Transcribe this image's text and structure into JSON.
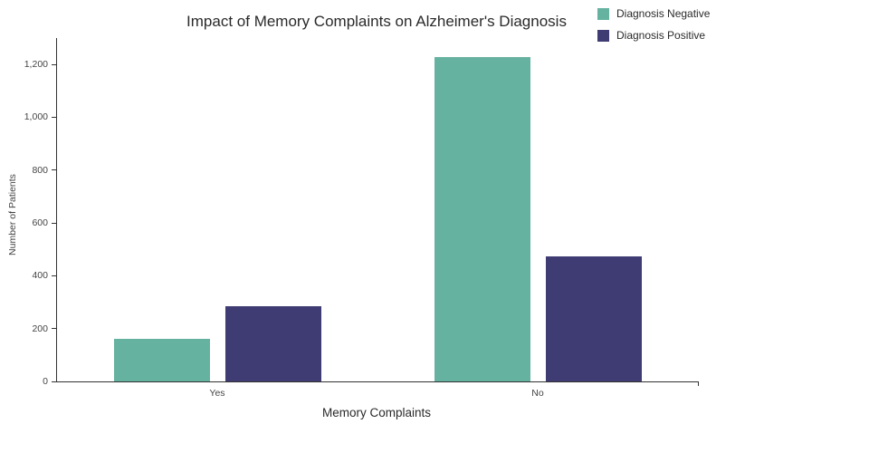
{
  "title": "Impact of Memory Complaints on Alzheimer's Diagnosis",
  "chart_data": {
    "type": "bar",
    "title": "Impact of Memory Complaints on Alzheimer's Diagnosis",
    "categories": [
      "Yes",
      "No"
    ],
    "series": [
      {
        "name": "Diagnosis Negative",
        "color": "#66b2a0",
        "values": [
          160,
          1228
        ]
      },
      {
        "name": "Diagnosis Positive",
        "color": "#3e3c72",
        "values": [
          285,
          475
        ]
      }
    ],
    "xlabel": "Memory Complaints",
    "ylabel": "Number of Patients",
    "ylim": [
      0,
      1300
    ],
    "yticks": [
      0,
      200,
      400,
      600,
      800,
      1000,
      1200
    ],
    "ytick_labels": [
      "0",
      "200",
      "400",
      "600",
      "800",
      "1,000",
      "1,200"
    ],
    "legend_position": "top-right",
    "grid": false,
    "background_color": "#ffffff",
    "axis_color": "#333333"
  }
}
